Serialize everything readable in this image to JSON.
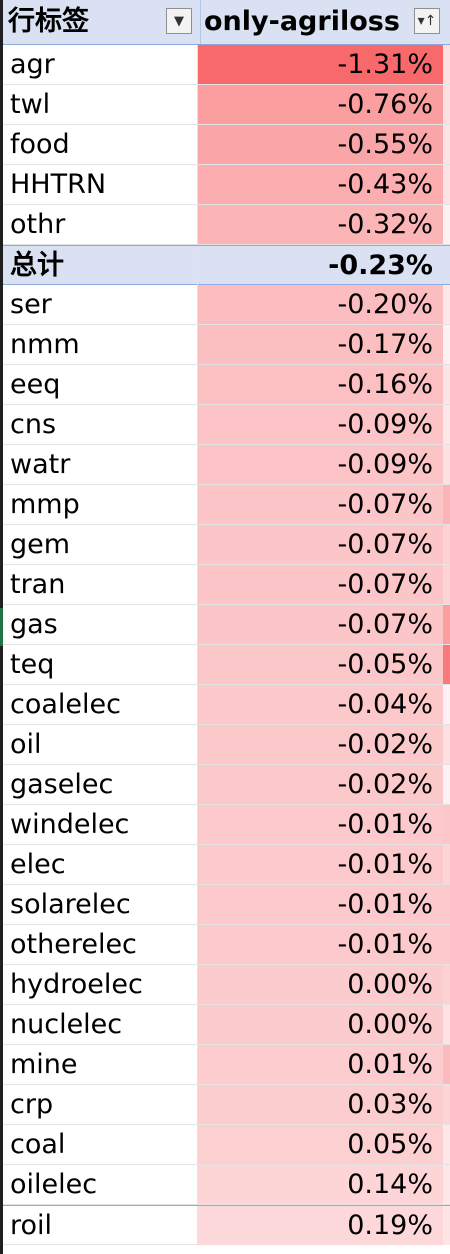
{
  "header": {
    "row_label": "行标签",
    "value_label": "only-agriloss",
    "filter_icon": "dropdown-arrow-icon",
    "sort_icon": "sort-filter-icon"
  },
  "rows": [
    {
      "label": "agr",
      "value": "-1.31%",
      "color": "#f8696b",
      "next_color": "#fde0e1"
    },
    {
      "label": "twl",
      "value": "-0.76%",
      "color": "#fa9ea0",
      "next_color": "#fde0e1"
    },
    {
      "label": "food",
      "value": "-0.55%",
      "color": "#faa6a8",
      "next_color": "#fce4e5"
    },
    {
      "label": "HHTRN",
      "value": "-0.43%",
      "color": "#fbadaf",
      "next_color": "#fde3e4"
    },
    {
      "label": "othr",
      "value": "-0.32%",
      "color": "#fbb5b7",
      "next_color": "#fdf2f3"
    },
    {
      "label": "总计",
      "value": "-0.23%",
      "color": "#fbbabc",
      "next_color": "#fbbabc",
      "total": true
    },
    {
      "label": "ser",
      "value": "-0.20%",
      "color": "#fbbdbf",
      "next_color": "#fde8e9"
    },
    {
      "label": "nmm",
      "value": "-0.17%",
      "color": "#fbbfc1",
      "next_color": "#fdf2f3"
    },
    {
      "label": "eeq",
      "value": "-0.16%",
      "color": "#fcc0c2",
      "next_color": "#fde4e5"
    },
    {
      "label": "cns",
      "value": "-0.09%",
      "color": "#fcc4c6",
      "next_color": "#fde8e9"
    },
    {
      "label": "watr",
      "value": "-0.09%",
      "color": "#fcc4c6",
      "next_color": "#fde0e1"
    },
    {
      "label": "mmp",
      "value": "-0.07%",
      "color": "#fcc6c8",
      "next_color": "#fbb5b7"
    },
    {
      "label": "gem",
      "value": "-0.07%",
      "color": "#fcc6c8",
      "next_color": "#fdd2d3"
    },
    {
      "label": "tran",
      "value": "-0.07%",
      "color": "#fcc6c8",
      "next_color": "#fdd5d6"
    },
    {
      "label": "gas",
      "value": "-0.07%",
      "color": "#fcc6c8",
      "next_color": "#fa9ea0"
    },
    {
      "label": "teq",
      "value": "-0.05%",
      "color": "#fcc7c9",
      "next_color": "#f8797b"
    },
    {
      "label": "coalelec",
      "value": "-0.04%",
      "color": "#fcc8ca",
      "next_color": "#fdf2f3"
    },
    {
      "label": "oil",
      "value": "-0.02%",
      "color": "#fcc9cb",
      "next_color": "#fde0e1"
    },
    {
      "label": "gaselec",
      "value": "-0.02%",
      "color": "#fcc9cb",
      "next_color": "#fdf2f3"
    },
    {
      "label": "windelec",
      "value": "-0.01%",
      "color": "#fccacc",
      "next_color": "#fcc7c9"
    },
    {
      "label": "elec",
      "value": "-0.01%",
      "color": "#fccacc",
      "next_color": "#fdd5d6"
    },
    {
      "label": "solarelec",
      "value": "-0.01%",
      "color": "#fccacc",
      "next_color": "#fccacc"
    },
    {
      "label": "otherelec",
      "value": "-0.01%",
      "color": "#fccacc",
      "next_color": "#fccacc"
    },
    {
      "label": "hydroelec",
      "value": "0.00%",
      "color": "#fccbcd",
      "next_color": "#fdd2d3"
    },
    {
      "label": "nuclelec",
      "value": "0.00%",
      "color": "#fccbcd",
      "next_color": "#fde3e4"
    },
    {
      "label": "mine",
      "value": "0.01%",
      "color": "#fcccce",
      "next_color": "#fbbabc"
    },
    {
      "label": "crp",
      "value": "0.03%",
      "color": "#fccdcf",
      "next_color": "#fdd5d6"
    },
    {
      "label": "coal",
      "value": "0.05%",
      "color": "#fccfd1",
      "next_color": "#fde8e9"
    },
    {
      "label": "oilelec",
      "value": "0.14%",
      "color": "#fdd5d6",
      "next_color": "#fde8e9"
    },
    {
      "label": "roil",
      "value": "0.19%",
      "color": "#fdd8da",
      "next_color": "#fde4e5"
    }
  ]
}
